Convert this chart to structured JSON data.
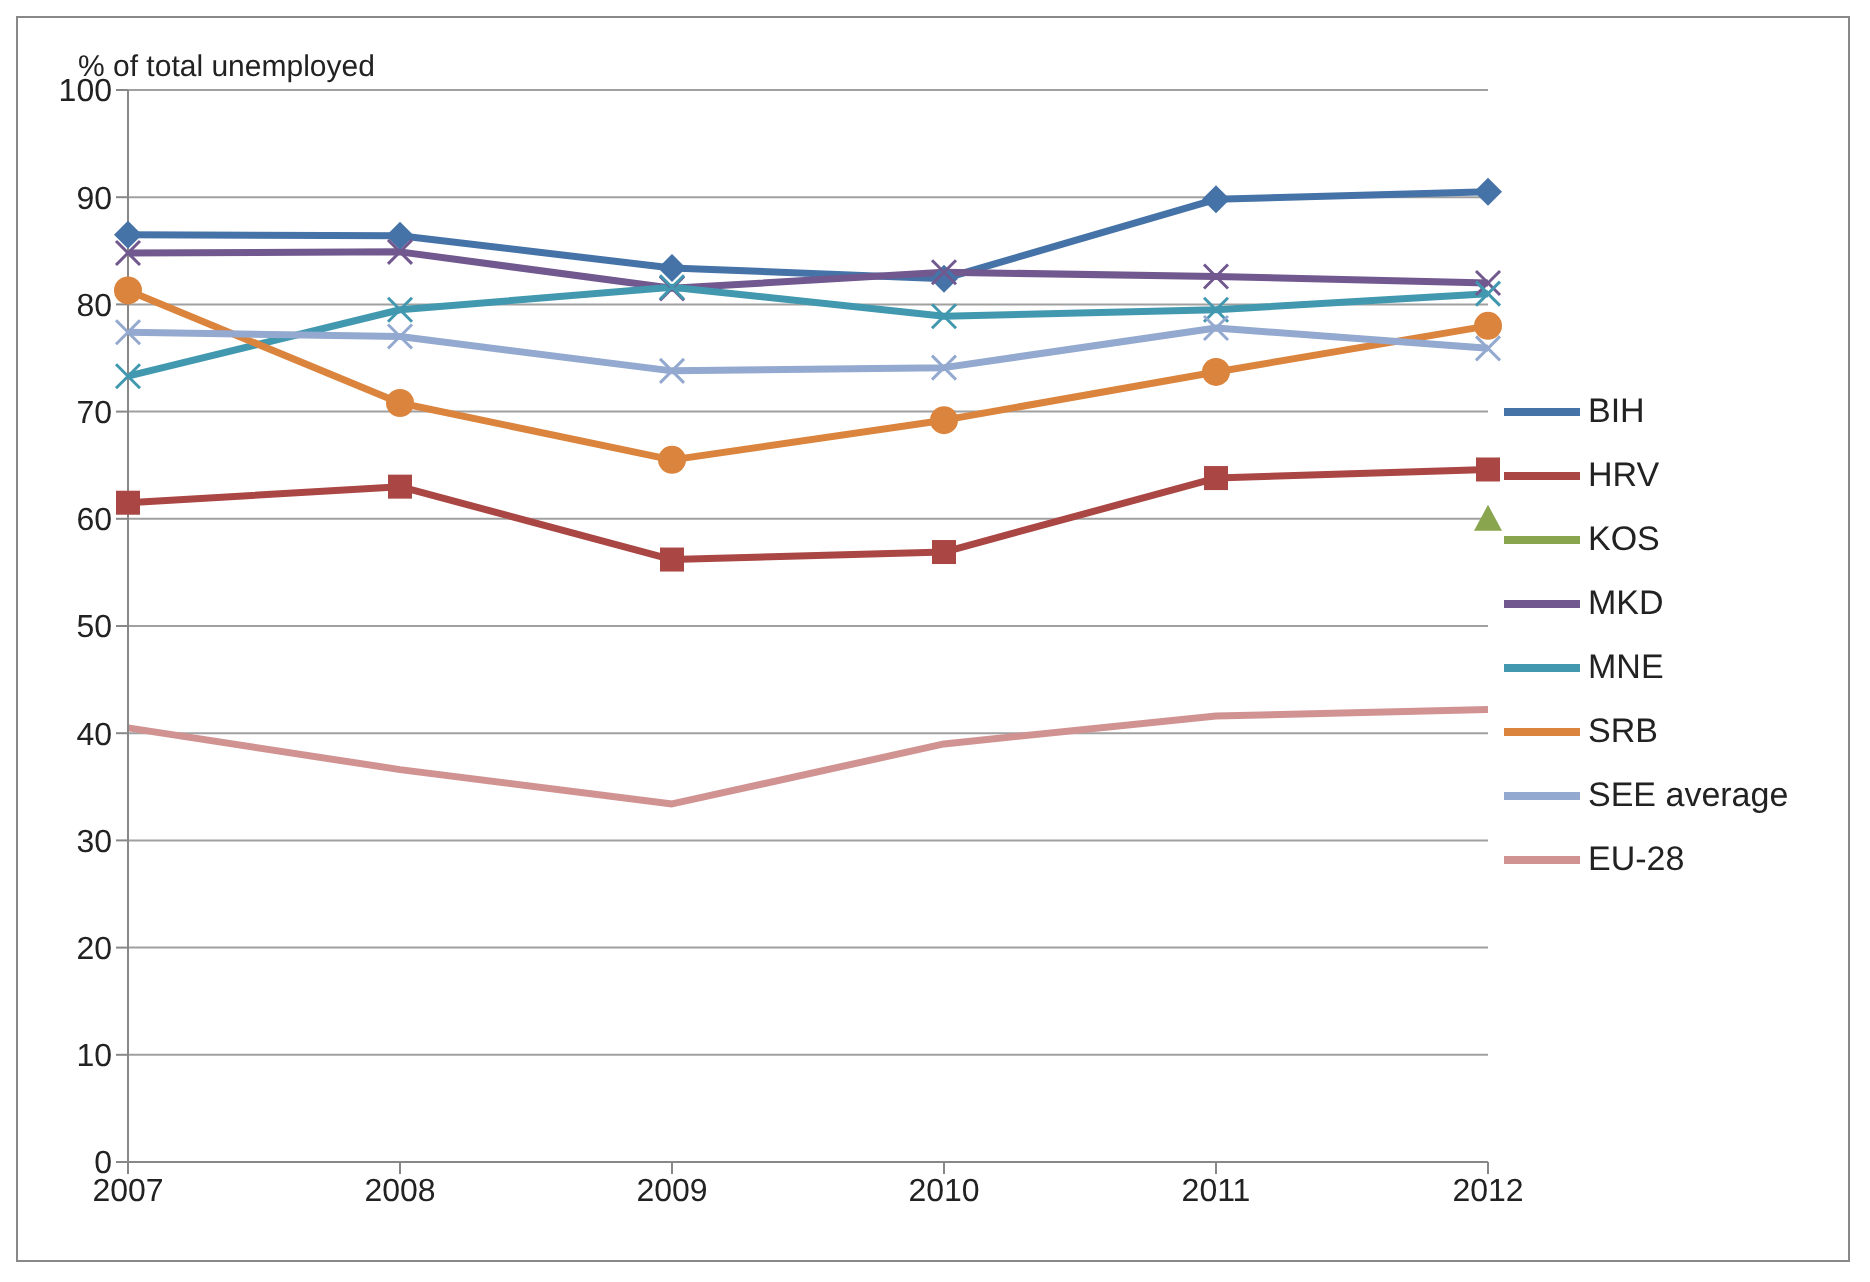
{
  "chart_data": {
    "type": "line",
    "ylabel": "% of total unemployed",
    "categories": [
      "2007",
      "2008",
      "2009",
      "2010",
      "2011",
      "2012"
    ],
    "ylim": [
      0,
      100
    ],
    "yticks": [
      0,
      10,
      20,
      30,
      40,
      50,
      60,
      70,
      80,
      90,
      100
    ],
    "grid": "y",
    "legend": "right",
    "series": [
      {
        "name": "BIH",
        "color": "#4572a7",
        "marker": "diamond",
        "values": [
          86.5,
          86.4,
          83.4,
          82.4,
          89.8,
          90.5
        ]
      },
      {
        "name": "HRV",
        "color": "#aa4643",
        "marker": "square",
        "values": [
          61.5,
          63,
          56.2,
          56.9,
          63.8,
          64.6
        ]
      },
      {
        "name": "KOS",
        "color": "#89a54e",
        "marker": "triangle",
        "values": [
          null,
          null,
          null,
          null,
          null,
          60
        ]
      },
      {
        "name": "MKD",
        "color": "#71588f",
        "marker": "cross",
        "values": [
          84.8,
          84.9,
          81.5,
          83,
          82.6,
          82
        ]
      },
      {
        "name": "MNE",
        "color": "#4198af",
        "marker": "cross",
        "values": [
          73.3,
          79.5,
          81.6,
          78.9,
          79.5,
          81
        ]
      },
      {
        "name": "SRB",
        "color": "#db843d",
        "marker": "circle",
        "values": [
          81.3,
          70.8,
          65.5,
          69.2,
          73.7,
          78
        ]
      },
      {
        "name": "SEE average",
        "color": "#93a9cf",
        "marker": "cross",
        "values": [
          77.4,
          77,
          73.8,
          74.1,
          77.8,
          75.9
        ]
      },
      {
        "name": "EU-28",
        "color": "#d19392",
        "marker": "none",
        "values": [
          40.5,
          36.6,
          33.4,
          39,
          41.6,
          42.2
        ]
      }
    ]
  }
}
